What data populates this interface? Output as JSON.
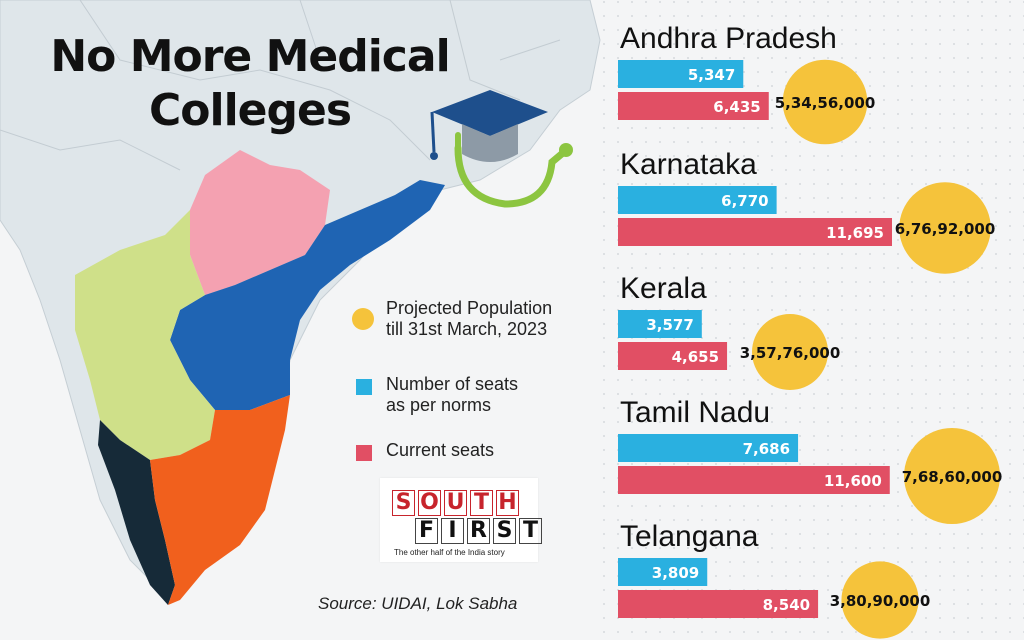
{
  "title": "No More Medical Colleges",
  "legend": {
    "population": "Projected Population\ntill 31st March, 2023",
    "norms": "Number of seats\nas per norms",
    "current": "Current seats"
  },
  "logo": {
    "row1": [
      "S",
      "O",
      "U",
      "T",
      "H"
    ],
    "row2": [
      "F",
      "I",
      "R",
      "S",
      "T"
    ],
    "tagline": "The other half of the India story"
  },
  "source": "Source: UIDAI, Lok Sabha",
  "colors": {
    "norms": "#2ab0e0",
    "current": "#e14f64",
    "population": "#f5c33b",
    "andhra": "#1f64b3",
    "telangana": "#f4a1b1",
    "karnataka": "#cfe089",
    "tamilnadu": "#f1601d",
    "kerala": "#162a38",
    "map_base": "#dfe6ea"
  },
  "chart_data": {
    "type": "bar",
    "categories": [
      "Andhra Pradesh",
      "Karnataka",
      "Kerala",
      "Tamil Nadu",
      "Telangana"
    ],
    "series": [
      {
        "name": "Number of seats as per norms",
        "values": [
          5347,
          6770,
          3577,
          7686,
          3809
        ],
        "labels": [
          "5,347",
          "6,770",
          "3,577",
          "7,686",
          "3,809"
        ]
      },
      {
        "name": "Current seats",
        "values": [
          6435,
          11695,
          4655,
          11600,
          8540
        ],
        "labels": [
          "6,435",
          "11,695",
          "4,655",
          "11,600",
          "8,540"
        ]
      }
    ],
    "population": {
      "name": "Projected Population till 31st March, 2023",
      "values": [
        53456000,
        67692000,
        35776000,
        76860000,
        38090000
      ],
      "labels": [
        "5,34,56,000",
        "6,76,92,000",
        "3,57,76,000",
        "7,68,60,000",
        "3,80,90,000"
      ]
    },
    "title": "No More Medical Colleges",
    "xlabel": "",
    "ylabel": ""
  }
}
